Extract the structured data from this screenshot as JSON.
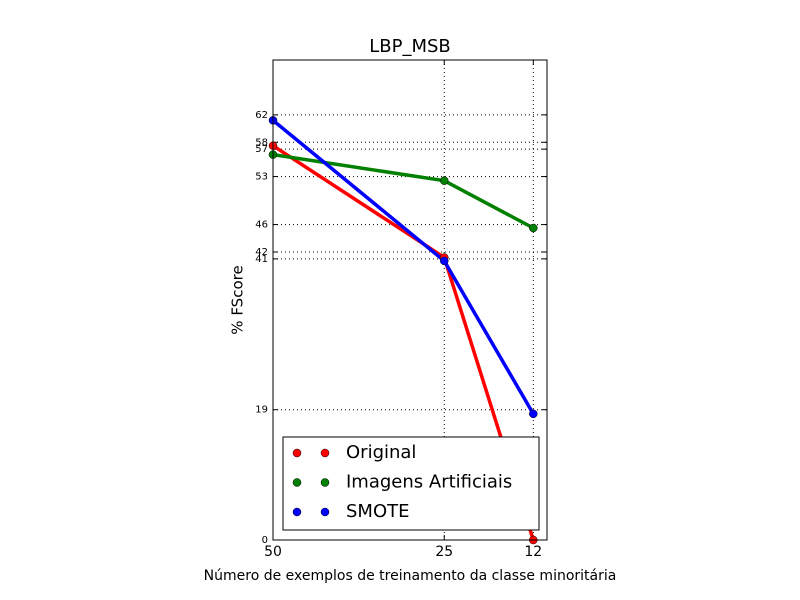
{
  "chart_data": {
    "type": "line",
    "title": "LBP_MSB",
    "xlabel": "Número de exemplos de treinamento da classe minoritária",
    "ylabel": "% FScore",
    "x": [
      50,
      25,
      12
    ],
    "xlim": [
      50,
      10
    ],
    "xticks": [
      50,
      25,
      12
    ],
    "ylim": [
      0,
      70
    ],
    "yticks": [
      0,
      19,
      41,
      42,
      46,
      53,
      57,
      58,
      62
    ],
    "grid": true,
    "legend": "lower right",
    "series": [
      {
        "name": "Original",
        "color": "#ff0000",
        "values": [
          57.5,
          41.2,
          0
        ]
      },
      {
        "name": "Imagens Artificiais",
        "color": "#008000",
        "values": [
          56.2,
          52.4,
          45.5
        ]
      },
      {
        "name": "SMOTE",
        "color": "#0000ff",
        "values": [
          61.2,
          40.7,
          18.4
        ]
      }
    ]
  }
}
